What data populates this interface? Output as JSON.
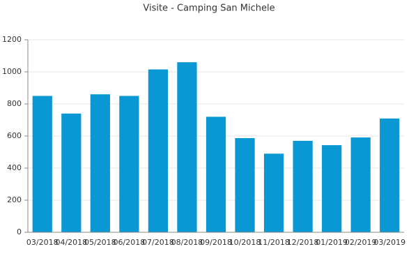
{
  "chart_data": {
    "type": "bar",
    "title": "Visite - Camping San Michele",
    "categories": [
      "03/2018",
      "04/2018",
      "05/2018",
      "06/2018",
      "07/2018",
      "08/2018",
      "09/2018",
      "10/2018",
      "11/2018",
      "12/2018",
      "01/2019",
      "02/2019",
      "03/2019"
    ],
    "values": [
      850,
      740,
      860,
      850,
      1015,
      1060,
      720,
      587,
      490,
      570,
      543,
      591,
      709
    ],
    "color": "#0a98d4",
    "ylim": [
      0,
      1200
    ],
    "yticks": [
      0,
      200,
      400,
      600,
      800,
      1000,
      1200
    ],
    "grid": true
  }
}
